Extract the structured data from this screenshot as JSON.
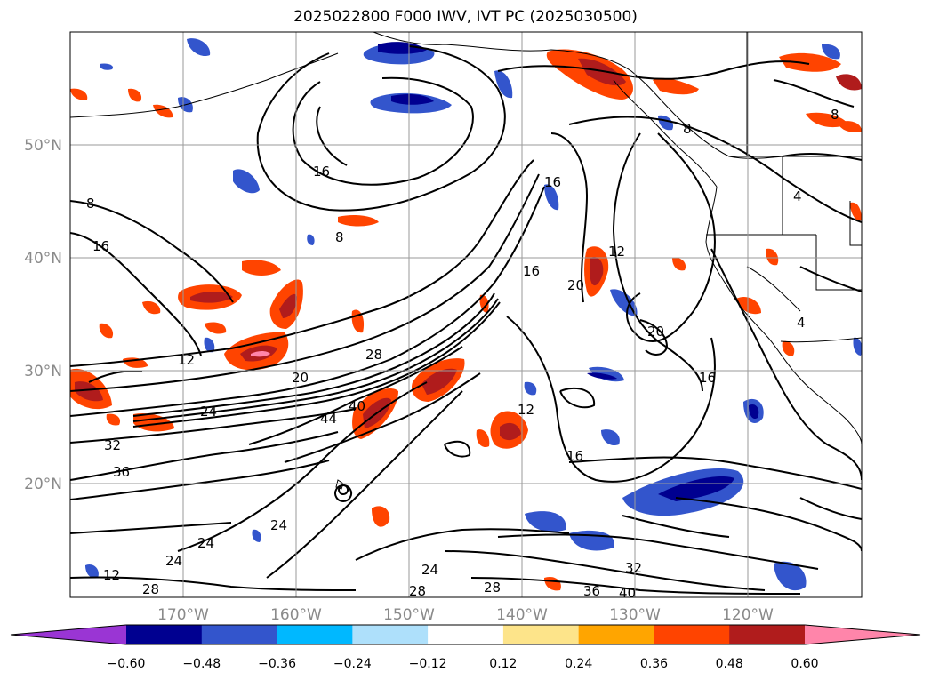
{
  "title": "2025022800 F000 IWV, IVT PC (2025030500)",
  "lon_labels": [
    "170°W",
    "160°W",
    "150°W",
    "140°W",
    "130°W",
    "120°W"
  ],
  "lat_labels": [
    "50°N",
    "40°N",
    "30°N",
    "20°N"
  ],
  "contour_labels": [
    "8",
    "16",
    "8",
    "16",
    "12",
    "20",
    "28",
    "24",
    "32",
    "36",
    "40",
    "44",
    "16",
    "12",
    "20",
    "16",
    "16",
    "12",
    "20",
    "16",
    "8",
    "8",
    "4",
    "4",
    "24",
    "24",
    "24",
    "28",
    "28",
    "24",
    "32",
    "36",
    "40",
    "12",
    "16"
  ],
  "colorbar": {
    "ticks": [
      "−0.60",
      "−0.48",
      "−0.36",
      "−0.24",
      "−0.12",
      "0.12",
      "0.24",
      "0.36",
      "0.48",
      "0.60"
    ],
    "colors": [
      "#9a35d4",
      "#000090",
      "#3355cc",
      "#00b8ff",
      "#aee0fb",
      "#ffffff",
      "#fde48a",
      "#ffa500",
      "#ff4400",
      "#b01c1c",
      "#ff85aa"
    ]
  },
  "colors": {
    "contour": "#000000",
    "coast": "#000000",
    "grid": "#9a9a9a",
    "tick_label": "#8a8a8a"
  }
}
